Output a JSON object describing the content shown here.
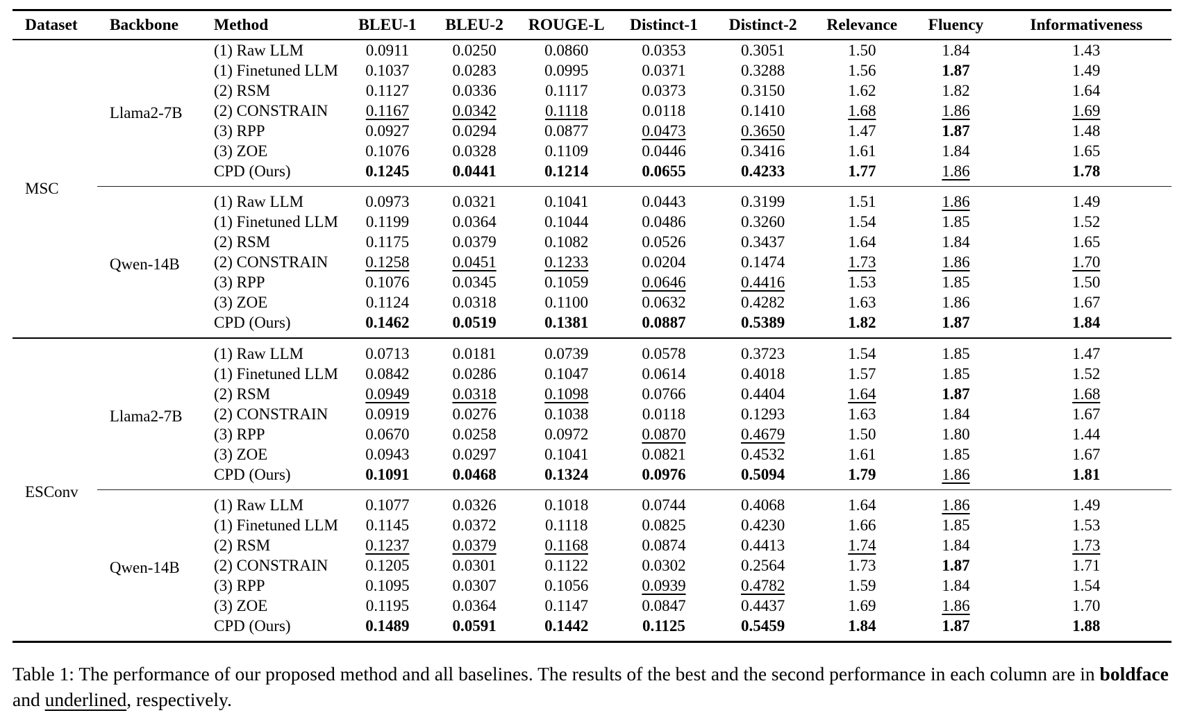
{
  "table": {
    "columns": [
      "Dataset",
      "Backbone",
      "Method",
      "BLEU-1",
      "BLEU-2",
      "ROUGE-L",
      "Distinct-1",
      "Distinct-2",
      "Relevance",
      "Fluency",
      "Informativeness"
    ],
    "groups": [
      {
        "dataset": "MSC",
        "blocks": [
          {
            "backbone": "Llama2-7B",
            "rows": [
              {
                "method": "(1) Raw LLM",
                "values": [
                  "0.0911",
                  "0.0250",
                  "0.0860",
                  "0.0353",
                  "0.3051",
                  "1.50",
                  "1.84",
                  "1.43"
                ],
                "styles": [
                  "",
                  "",
                  "",
                  "",
                  "",
                  "",
                  "",
                  ""
                ]
              },
              {
                "method": "(1) Finetuned LLM",
                "values": [
                  "0.1037",
                  "0.0283",
                  "0.0995",
                  "0.0371",
                  "0.3288",
                  "1.56",
                  "1.87",
                  "1.49"
                ],
                "styles": [
                  "",
                  "",
                  "",
                  "",
                  "",
                  "",
                  "b",
                  ""
                ]
              },
              {
                "method": "(2) RSM",
                "values": [
                  "0.1127",
                  "0.0336",
                  "0.1117",
                  "0.0373",
                  "0.3150",
                  "1.62",
                  "1.82",
                  "1.64"
                ],
                "styles": [
                  "",
                  "",
                  "",
                  "",
                  "",
                  "",
                  "",
                  ""
                ]
              },
              {
                "method": "(2) CONSTRAIN",
                "values": [
                  "0.1167",
                  "0.0342",
                  "0.1118",
                  "0.0118",
                  "0.1410",
                  "1.68",
                  "1.86",
                  "1.69"
                ],
                "styles": [
                  "u",
                  "u",
                  "u",
                  "",
                  "",
                  "u",
                  "u",
                  "u"
                ]
              },
              {
                "method": "(3) RPP",
                "values": [
                  "0.0927",
                  "0.0294",
                  "0.0877",
                  "0.0473",
                  "0.3650",
                  "1.47",
                  "1.87",
                  "1.48"
                ],
                "styles": [
                  "",
                  "",
                  "",
                  "u",
                  "u",
                  "",
                  "b",
                  ""
                ]
              },
              {
                "method": "(3) ZOE",
                "values": [
                  "0.1076",
                  "0.0328",
                  "0.1109",
                  "0.0446",
                  "0.3416",
                  "1.61",
                  "1.84",
                  "1.65"
                ],
                "styles": [
                  "",
                  "",
                  "",
                  "",
                  "",
                  "",
                  "",
                  ""
                ]
              },
              {
                "method": "CPD (Ours)",
                "values": [
                  "0.1245",
                  "0.0441",
                  "0.1214",
                  "0.0655",
                  "0.4233",
                  "1.77",
                  "1.86",
                  "1.78"
                ],
                "styles": [
                  "b",
                  "b",
                  "b",
                  "b",
                  "b",
                  "b",
                  "u",
                  "b"
                ]
              }
            ]
          },
          {
            "backbone": "Qwen-14B",
            "rows": [
              {
                "method": "(1) Raw LLM",
                "values": [
                  "0.0973",
                  "0.0321",
                  "0.1041",
                  "0.0443",
                  "0.3199",
                  "1.51",
                  "1.86",
                  "1.49"
                ],
                "styles": [
                  "",
                  "",
                  "",
                  "",
                  "",
                  "",
                  "u",
                  ""
                ]
              },
              {
                "method": "(1) Finetuned LLM",
                "values": [
                  "0.1199",
                  "0.0364",
                  "0.1044",
                  "0.0486",
                  "0.3260",
                  "1.54",
                  "1.85",
                  "1.52"
                ],
                "styles": [
                  "",
                  "",
                  "",
                  "",
                  "",
                  "",
                  "",
                  ""
                ]
              },
              {
                "method": "(2) RSM",
                "values": [
                  "0.1175",
                  "0.0379",
                  "0.1082",
                  "0.0526",
                  "0.3437",
                  "1.64",
                  "1.84",
                  "1.65"
                ],
                "styles": [
                  "",
                  "",
                  "",
                  "",
                  "",
                  "",
                  "",
                  ""
                ]
              },
              {
                "method": "(2) CONSTRAIN",
                "values": [
                  "0.1258",
                  "0.0451",
                  "0.1233",
                  "0.0204",
                  "0.1474",
                  "1.73",
                  "1.86",
                  "1.70"
                ],
                "styles": [
                  "u",
                  "u",
                  "u",
                  "",
                  "",
                  "u",
                  "u",
                  "u"
                ]
              },
              {
                "method": "(3) RPP",
                "values": [
                  "0.1076",
                  "0.0345",
                  "0.1059",
                  "0.0646",
                  "0.4416",
                  "1.53",
                  "1.85",
                  "1.50"
                ],
                "styles": [
                  "",
                  "",
                  "",
                  "u",
                  "u",
                  "",
                  "",
                  ""
                ]
              },
              {
                "method": "(3) ZOE",
                "values": [
                  "0.1124",
                  "0.0318",
                  "0.1100",
                  "0.0632",
                  "0.4282",
                  "1.63",
                  "1.86",
                  "1.67"
                ],
                "styles": [
                  "",
                  "",
                  "",
                  "",
                  "",
                  "",
                  "",
                  ""
                ]
              },
              {
                "method": "CPD (Ours)",
                "values": [
                  "0.1462",
                  "0.0519",
                  "0.1381",
                  "0.0887",
                  "0.5389",
                  "1.82",
                  "1.87",
                  "1.84"
                ],
                "styles": [
                  "b",
                  "b",
                  "b",
                  "b",
                  "b",
                  "b",
                  "b",
                  "b"
                ]
              }
            ]
          }
        ]
      },
      {
        "dataset": "ESConv",
        "blocks": [
          {
            "backbone": "Llama2-7B",
            "rows": [
              {
                "method": "(1) Raw LLM",
                "values": [
                  "0.0713",
                  "0.0181",
                  "0.0739",
                  "0.0578",
                  "0.3723",
                  "1.54",
                  "1.85",
                  "1.47"
                ],
                "styles": [
                  "",
                  "",
                  "",
                  "",
                  "",
                  "",
                  "",
                  ""
                ]
              },
              {
                "method": "(1) Finetuned LLM",
                "values": [
                  "0.0842",
                  "0.0286",
                  "0.1047",
                  "0.0614",
                  "0.4018",
                  "1.57",
                  "1.85",
                  "1.52"
                ],
                "styles": [
                  "",
                  "",
                  "",
                  "",
                  "",
                  "",
                  "",
                  ""
                ]
              },
              {
                "method": "(2) RSM",
                "values": [
                  "0.0949",
                  "0.0318",
                  "0.1098",
                  "0.0766",
                  "0.4404",
                  "1.64",
                  "1.87",
                  "1.68"
                ],
                "styles": [
                  "u",
                  "u",
                  "u",
                  "",
                  "",
                  "u",
                  "b",
                  "u"
                ]
              },
              {
                "method": "(2) CONSTRAIN",
                "values": [
                  "0.0919",
                  "0.0276",
                  "0.1038",
                  "0.0118",
                  "0.1293",
                  "1.63",
                  "1.84",
                  "1.67"
                ],
                "styles": [
                  "",
                  "",
                  "",
                  "",
                  "",
                  "",
                  "",
                  ""
                ]
              },
              {
                "method": "(3) RPP",
                "values": [
                  "0.0670",
                  "0.0258",
                  "0.0972",
                  "0.0870",
                  "0.4679",
                  "1.50",
                  "1.80",
                  "1.44"
                ],
                "styles": [
                  "",
                  "",
                  "",
                  "u",
                  "u",
                  "",
                  "",
                  ""
                ]
              },
              {
                "method": "(3) ZOE",
                "values": [
                  "0.0943",
                  "0.0297",
                  "0.1041",
                  "0.0821",
                  "0.4532",
                  "1.61",
                  "1.85",
                  "1.67"
                ],
                "styles": [
                  "",
                  "",
                  "",
                  "",
                  "",
                  "",
                  "",
                  ""
                ]
              },
              {
                "method": "CPD (Ours)",
                "values": [
                  "0.1091",
                  "0.0468",
                  "0.1324",
                  "0.0976",
                  "0.5094",
                  "1.79",
                  "1.86",
                  "1.81"
                ],
                "styles": [
                  "b",
                  "b",
                  "b",
                  "b",
                  "b",
                  "b",
                  "u",
                  "b"
                ]
              }
            ]
          },
          {
            "backbone": "Qwen-14B",
            "rows": [
              {
                "method": "(1) Raw LLM",
                "values": [
                  "0.1077",
                  "0.0326",
                  "0.1018",
                  "0.0744",
                  "0.4068",
                  "1.64",
                  "1.86",
                  "1.49"
                ],
                "styles": [
                  "",
                  "",
                  "",
                  "",
                  "",
                  "",
                  "u",
                  ""
                ]
              },
              {
                "method": "(1) Finetuned LLM",
                "values": [
                  "0.1145",
                  "0.0372",
                  "0.1118",
                  "0.0825",
                  "0.4230",
                  "1.66",
                  "1.85",
                  "1.53"
                ],
                "styles": [
                  "",
                  "",
                  "",
                  "",
                  "",
                  "",
                  "",
                  ""
                ]
              },
              {
                "method": "(2) RSM",
                "values": [
                  "0.1237",
                  "0.0379",
                  "0.1168",
                  "0.0874",
                  "0.4413",
                  "1.74",
                  "1.84",
                  "1.73"
                ],
                "styles": [
                  "u",
                  "u",
                  "u",
                  "",
                  "",
                  "u",
                  "",
                  "u"
                ]
              },
              {
                "method": "(2) CONSTRAIN",
                "values": [
                  "0.1205",
                  "0.0301",
                  "0.1122",
                  "0.0302",
                  "0.2564",
                  "1.73",
                  "1.87",
                  "1.71"
                ],
                "styles": [
                  "",
                  "",
                  "",
                  "",
                  "",
                  "",
                  "b",
                  ""
                ]
              },
              {
                "method": "(3) RPP",
                "values": [
                  "0.1095",
                  "0.0307",
                  "0.1056",
                  "0.0939",
                  "0.4782",
                  "1.59",
                  "1.84",
                  "1.54"
                ],
                "styles": [
                  "",
                  "",
                  "",
                  "u",
                  "u",
                  "",
                  "",
                  ""
                ]
              },
              {
                "method": "(3) ZOE",
                "values": [
                  "0.1195",
                  "0.0364",
                  "0.1147",
                  "0.0847",
                  "0.4437",
                  "1.69",
                  "1.86",
                  "1.70"
                ],
                "styles": [
                  "",
                  "",
                  "",
                  "",
                  "",
                  "",
                  "u",
                  ""
                ]
              },
              {
                "method": "CPD (Ours)",
                "values": [
                  "0.1489",
                  "0.0591",
                  "0.1442",
                  "0.1125",
                  "0.5459",
                  "1.84",
                  "1.87",
                  "1.88"
                ],
                "styles": [
                  "b",
                  "b",
                  "b",
                  "b",
                  "b",
                  "b",
                  "b",
                  "b"
                ]
              }
            ]
          }
        ]
      }
    ]
  },
  "caption": {
    "part1": "Table 1: The performance of our proposed method and all baselines. The results of the best and the second performance in each column are in ",
    "bold_word": "boldface",
    "part2": " and ",
    "underlined_word": "underlined",
    "part3": ", respectively."
  }
}
